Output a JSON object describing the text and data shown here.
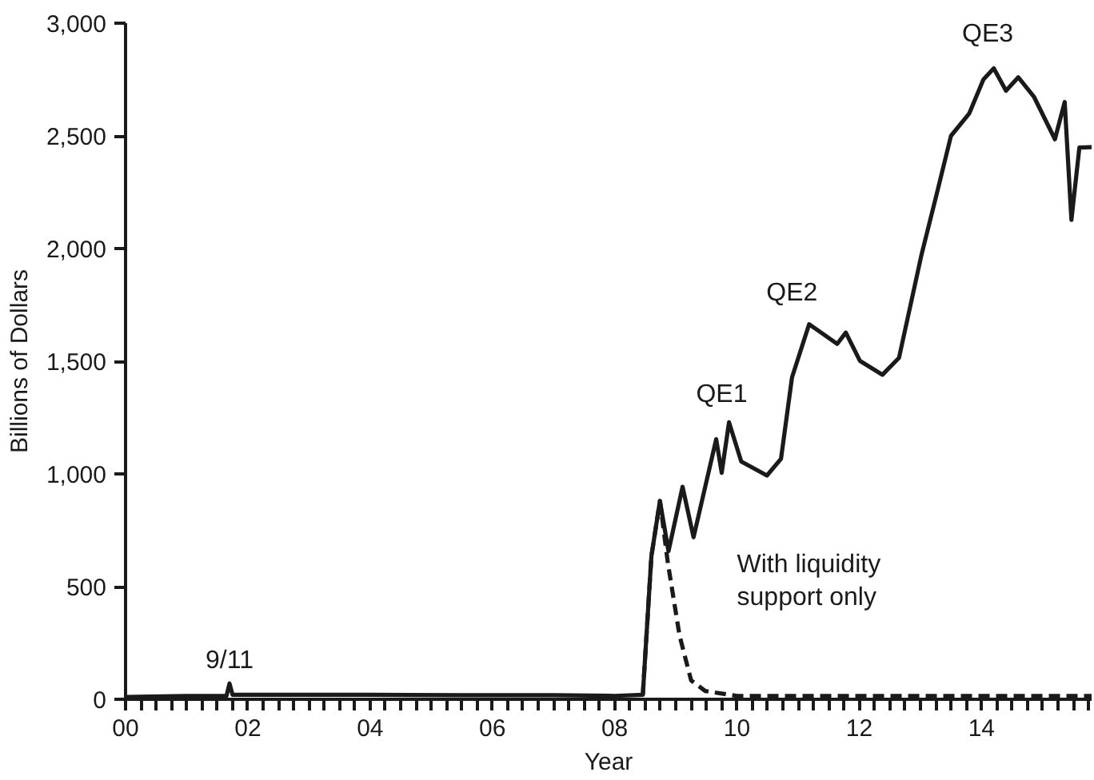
{
  "chart_data": {
    "type": "line",
    "xlabel": "Year",
    "ylabel": "Billions of Dollars",
    "xlim": [
      2000,
      2015.8
    ],
    "ylim": [
      0,
      3000
    ],
    "yticks": [
      {
        "value": 0,
        "label": "0"
      },
      {
        "value": 500,
        "label": "500"
      },
      {
        "value": 1000,
        "label": "1,000"
      },
      {
        "value": 1500,
        "label": "1,500"
      },
      {
        "value": 2000,
        "label": "2,000"
      },
      {
        "value": 2500,
        "label": "2,500"
      },
      {
        "value": 3000,
        "label": "3,000"
      }
    ],
    "xticks": [
      {
        "value": 2000,
        "label": "00"
      },
      {
        "value": 2000.25,
        "label": null
      },
      {
        "value": 2000.5,
        "label": null
      },
      {
        "value": 2000.75,
        "label": null
      },
      {
        "value": 2001,
        "label": null
      },
      {
        "value": 2001.25,
        "label": null
      },
      {
        "value": 2001.5,
        "label": null
      },
      {
        "value": 2001.75,
        "label": null
      },
      {
        "value": 2002,
        "label": "02"
      },
      {
        "value": 2002.25,
        "label": null
      },
      {
        "value": 2002.5,
        "label": null
      },
      {
        "value": 2002.75,
        "label": null
      },
      {
        "value": 2003,
        "label": null
      },
      {
        "value": 2003.25,
        "label": null
      },
      {
        "value": 2003.5,
        "label": null
      },
      {
        "value": 2003.75,
        "label": null
      },
      {
        "value": 2004,
        "label": "04"
      },
      {
        "value": 2004.25,
        "label": null
      },
      {
        "value": 2004.5,
        "label": null
      },
      {
        "value": 2004.75,
        "label": null
      },
      {
        "value": 2005,
        "label": null
      },
      {
        "value": 2005.25,
        "label": null
      },
      {
        "value": 2005.5,
        "label": null
      },
      {
        "value": 2005.75,
        "label": null
      },
      {
        "value": 2006,
        "label": "06"
      },
      {
        "value": 2006.25,
        "label": null
      },
      {
        "value": 2006.5,
        "label": null
      },
      {
        "value": 2006.75,
        "label": null
      },
      {
        "value": 2007,
        "label": null
      },
      {
        "value": 2007.25,
        "label": null
      },
      {
        "value": 2007.5,
        "label": null
      },
      {
        "value": 2007.75,
        "label": null
      },
      {
        "value": 2008,
        "label": "08"
      },
      {
        "value": 2008.25,
        "label": null
      },
      {
        "value": 2008.5,
        "label": null
      },
      {
        "value": 2008.75,
        "label": null
      },
      {
        "value": 2009,
        "label": null
      },
      {
        "value": 2009.25,
        "label": null
      },
      {
        "value": 2009.5,
        "label": null
      },
      {
        "value": 2009.75,
        "label": null
      },
      {
        "value": 2010,
        "label": "10"
      },
      {
        "value": 2010.25,
        "label": null
      },
      {
        "value": 2010.5,
        "label": null
      },
      {
        "value": 2010.75,
        "label": null
      },
      {
        "value": 2011,
        "label": null
      },
      {
        "value": 2011.25,
        "label": null
      },
      {
        "value": 2011.5,
        "label": null
      },
      {
        "value": 2011.75,
        "label": null
      },
      {
        "value": 2012,
        "label": "12"
      },
      {
        "value": 2012.25,
        "label": null
      },
      {
        "value": 2012.5,
        "label": null
      },
      {
        "value": 2012.75,
        "label": null
      },
      {
        "value": 2013,
        "label": null
      },
      {
        "value": 2013.25,
        "label": null
      },
      {
        "value": 2013.5,
        "label": null
      },
      {
        "value": 2013.75,
        "label": null
      },
      {
        "value": 2014,
        "label": "14"
      },
      {
        "value": 2014.25,
        "label": null
      },
      {
        "value": 2014.5,
        "label": null
      },
      {
        "value": 2014.75,
        "label": null
      },
      {
        "value": 2015,
        "label": null
      },
      {
        "value": 2015.25,
        "label": null
      },
      {
        "value": 2015.5,
        "label": null
      },
      {
        "value": 2015.75,
        "label": null
      }
    ],
    "grid": false,
    "marker": "none",
    "series": [
      {
        "color": "#1a1a1a",
        "line_style": "solid",
        "x": [
          2000.0,
          2001.0,
          2001.65,
          2001.7,
          2001.75,
          2002.5,
          2004.0,
          2005.5,
          2007.0,
          2008.0,
          2008.46,
          2008.6,
          2008.74,
          2008.88,
          2009.11,
          2009.29,
          2009.66,
          2009.75,
          2009.87,
          2010.07,
          2010.49,
          2010.72,
          2010.9,
          2011.18,
          2011.64,
          2011.78,
          2012.01,
          2012.38,
          2012.65,
          2013.02,
          2013.25,
          2013.5,
          2013.8,
          2014.03,
          2014.2,
          2014.4,
          2014.6,
          2014.86,
          2015.2,
          2015.36,
          2015.47,
          2015.6,
          2015.8
        ],
        "values": [
          10,
          15,
          15,
          70,
          20,
          20,
          20,
          18,
          18,
          15,
          20,
          634,
          880,
          657,
          943,
          719,
          1154,
          1005,
          1229,
          1055,
          993,
          1067,
          1428,
          1664,
          1577,
          1627,
          1502,
          1440,
          1515,
          1975,
          2224,
          2500,
          2600,
          2750,
          2800,
          2700,
          2760,
          2672,
          2485,
          2650,
          2127,
          2448,
          2450
        ]
      },
      {
        "color": "#1a1a1a",
        "line_style": "dashed",
        "x": [
          2008.46,
          2008.6,
          2008.74,
          2008.87,
          2009.06,
          2009.25,
          2009.48,
          2010.0,
          2012.0,
          2014.0,
          2015.8
        ],
        "values": [
          20,
          634,
          880,
          604,
          284,
          84,
          37,
          15,
          15,
          15,
          15
        ]
      }
    ],
    "annotations": [
      "9/11",
      "QE1",
      "QE2",
      "QE3",
      "With liquidity\nsupport only"
    ]
  }
}
